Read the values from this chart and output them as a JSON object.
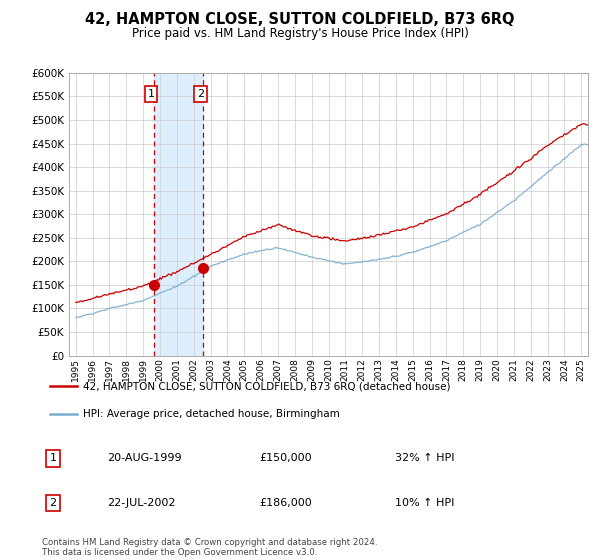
{
  "title": "42, HAMPTON CLOSE, SUTTON COLDFIELD, B73 6RQ",
  "subtitle": "Price paid vs. HM Land Registry's House Price Index (HPI)",
  "ylim": [
    0,
    600000
  ],
  "yticks": [
    0,
    50000,
    100000,
    150000,
    200000,
    250000,
    300000,
    350000,
    400000,
    450000,
    500000,
    550000,
    600000
  ],
  "sale1_year": 1999.625,
  "sale1_price": 150000,
  "sale1_label": "20-AUG-1999",
  "sale1_hpi_text": "32% ↑ HPI",
  "sale2_year": 2002.542,
  "sale2_price": 186000,
  "sale2_label": "22-JUL-2002",
  "sale2_hpi_text": "10% ↑ HPI",
  "red_color": "#cc0000",
  "blue_color": "#7aadcf",
  "shade_color": "#ddeeff",
  "legend_line1": "42, HAMPTON CLOSE, SUTTON COLDFIELD, B73 6RQ (detached house)",
  "legend_line2": "HPI: Average price, detached house, Birmingham",
  "footnote": "Contains HM Land Registry data © Crown copyright and database right 2024.\nThis data is licensed under the Open Government Licence v3.0."
}
